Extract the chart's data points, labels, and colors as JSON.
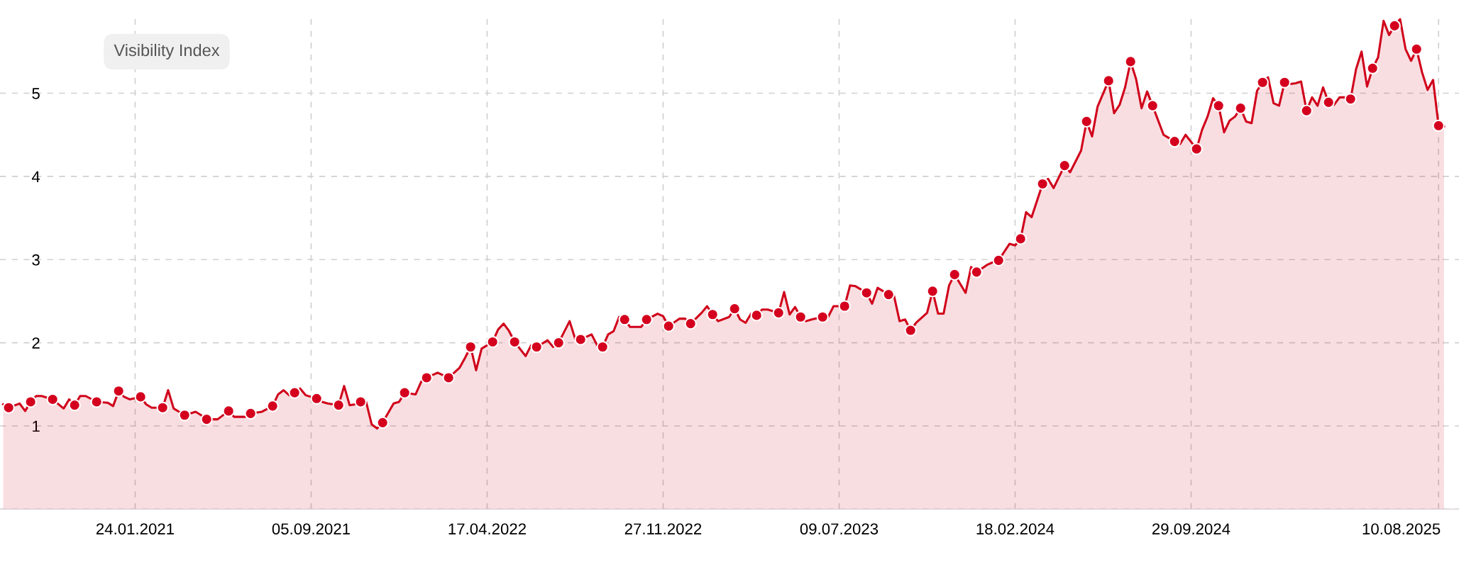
{
  "chart_data": {
    "type": "area",
    "title": "Visibility Index",
    "xlim": [
      "2020-08-05",
      "2025-09-05"
    ],
    "ylim": [
      0,
      5.95
    ],
    "yticks": [
      {
        "value": 0,
        "label": null
      },
      1,
      2,
      3,
      4,
      5
    ],
    "xticks": [
      {
        "value": "2021-01-24",
        "label": "24.01.2021"
      },
      {
        "value": "2021-09-05",
        "label": "05.09.2021"
      },
      {
        "value": "2022-04-17",
        "label": "17.04.2022"
      },
      {
        "value": "2022-11-27",
        "label": "27.11.2022"
      },
      {
        "value": "2023-07-09",
        "label": "09.07.2023"
      },
      {
        "value": "2024-02-18",
        "label": "18.02.2024"
      },
      {
        "value": "2024-09-29",
        "label": "29.09.2024"
      },
      {
        "value": "2025-08-10",
        "label": "10.08.2025"
      }
    ],
    "grid": true,
    "line_style": "dashed",
    "series": [
      {
        "color": "#d0021b",
        "marker": "none",
        "x": [
          "2020-08-09",
          "2020-08-16",
          "2020-08-30",
          "2020-09-06",
          "2020-09-13",
          "2020-09-20",
          "2020-09-27",
          "2020-10-11",
          "2020-10-25",
          "2020-11-01",
          "2020-11-08",
          "2020-11-15",
          "2020-11-22",
          "2020-12-06",
          "2020-12-20",
          "2020-12-27",
          "2021-01-03",
          "2021-01-10",
          "2021-01-17",
          "2021-01-31",
          "2021-02-07",
          "2021-02-14",
          "2021-02-28",
          "2021-03-07",
          "2021-03-14",
          "2021-03-21",
          "2021-03-28",
          "2021-04-11",
          "2021-04-18",
          "2021-04-25",
          "2021-05-09",
          "2021-05-23",
          "2021-05-30",
          "2021-06-13",
          "2021-06-20",
          "2021-07-04",
          "2021-07-18",
          "2021-07-25",
          "2021-08-01",
          "2021-08-08",
          "2021-08-15",
          "2021-08-22",
          "2021-08-29",
          "2021-09-12",
          "2021-09-19",
          "2021-09-26",
          "2021-10-10",
          "2021-10-17",
          "2021-10-24",
          "2021-10-31",
          "2021-11-07",
          "2021-11-14",
          "2021-11-21",
          "2021-11-28",
          "2021-12-05",
          "2021-12-19",
          "2021-12-26",
          "2022-01-02",
          "2022-01-16",
          "2022-01-23",
          "2022-01-30",
          "2022-02-13",
          "2022-02-20",
          "2022-02-27",
          "2022-03-13",
          "2022-03-20",
          "2022-03-27",
          "2022-04-03",
          "2022-04-10",
          "2022-04-24",
          "2022-05-01",
          "2022-05-08",
          "2022-05-15",
          "2022-05-22",
          "2022-06-05",
          "2022-06-12",
          "2022-06-19",
          "2022-07-03",
          "2022-07-10",
          "2022-07-17",
          "2022-07-31",
          "2022-08-07",
          "2022-08-14",
          "2022-08-28",
          "2022-09-04",
          "2022-09-11",
          "2022-09-18",
          "2022-09-25",
          "2022-10-02",
          "2022-10-09",
          "2022-10-16",
          "2022-10-30",
          "2022-11-06",
          "2022-11-20",
          "2022-11-27",
          "2022-12-04",
          "2022-12-18",
          "2022-12-25",
          "2023-01-01",
          "2023-01-15",
          "2023-01-22",
          "2023-01-29",
          "2023-02-05",
          "2023-02-19",
          "2023-02-26",
          "2023-03-05",
          "2023-03-12",
          "2023-03-19",
          "2023-03-26",
          "2023-04-02",
          "2023-04-09",
          "2023-04-23",
          "2023-04-30",
          "2023-05-07",
          "2023-05-14",
          "2023-05-21",
          "2023-05-28",
          "2023-06-04",
          "2023-06-18",
          "2023-06-25",
          "2023-07-02",
          "2023-07-16",
          "2023-07-23",
          "2023-07-30",
          "2023-08-13",
          "2023-08-20",
          "2023-08-27",
          "2023-09-10",
          "2023-09-17",
          "2023-09-24",
          "2023-10-01",
          "2023-10-08",
          "2023-10-15",
          "2023-10-29",
          "2023-11-05",
          "2023-11-12",
          "2023-11-19",
          "2023-11-26",
          "2023-12-03",
          "2023-12-17",
          "2023-12-24",
          "2023-12-31",
          "2024-01-14",
          "2024-01-21",
          "2024-01-28",
          "2024-02-11",
          "2024-02-18",
          "2024-02-25",
          "2024-03-03",
          "2024-03-10",
          "2024-03-24",
          "2024-03-31",
          "2024-04-07",
          "2024-04-21",
          "2024-04-28",
          "2024-05-12",
          "2024-05-19",
          "2024-05-26",
          "2024-06-02",
          "2024-06-16",
          "2024-06-23",
          "2024-06-30",
          "2024-07-07",
          "2024-07-14",
          "2024-07-21",
          "2024-07-28",
          "2024-08-04",
          "2024-08-11",
          "2024-08-25",
          "2024-09-01",
          "2024-09-08",
          "2024-09-15",
          "2024-09-22",
          "2024-10-06",
          "2024-10-13",
          "2024-10-20",
          "2024-10-27",
          "2024-11-03",
          "2024-11-10",
          "2024-11-17",
          "2024-11-24",
          "2024-12-01",
          "2024-12-08",
          "2024-12-15",
          "2024-12-22",
          "2024-12-29",
          "2025-01-05",
          "2025-01-12",
          "2025-01-19",
          "2025-01-26",
          "2025-02-02",
          "2025-02-09",
          "2025-02-16",
          "2025-02-23",
          "2025-03-02",
          "2025-03-09",
          "2025-03-16",
          "2025-03-23",
          "2025-03-30",
          "2025-04-06",
          "2025-04-13",
          "2025-04-20",
          "2025-04-27",
          "2025-05-04",
          "2025-05-11",
          "2025-05-18",
          "2025-05-25",
          "2025-06-01",
          "2025-06-08",
          "2025-06-15",
          "2025-06-22",
          "2025-06-29",
          "2025-07-06",
          "2025-07-13",
          "2025-07-20",
          "2025-07-27",
          "2025-08-03",
          "2025-08-10",
          "2025-08-17"
        ],
        "values": [
          1.26,
          1.22,
          1.27,
          1.18,
          1.29,
          1.36,
          1.36,
          1.32,
          1.21,
          1.32,
          1.25,
          1.36,
          1.36,
          1.29,
          1.28,
          1.24,
          1.42,
          1.35,
          1.32,
          1.35,
          1.26,
          1.22,
          1.22,
          1.43,
          1.21,
          1.17,
          1.13,
          1.17,
          1.13,
          1.08,
          1.08,
          1.18,
          1.11,
          1.11,
          1.15,
          1.17,
          1.24,
          1.38,
          1.43,
          1.37,
          1.4,
          1.45,
          1.37,
          1.33,
          1.29,
          1.27,
          1.25,
          1.48,
          1.25,
          1.26,
          1.29,
          1.29,
          1.02,
          0.97,
          1.04,
          1.27,
          1.29,
          1.4,
          1.38,
          1.53,
          1.58,
          1.64,
          1.61,
          1.58,
          1.7,
          1.82,
          1.95,
          1.67,
          1.93,
          2.01,
          2.16,
          2.23,
          2.14,
          2.01,
          1.84,
          1.97,
          1.95,
          2.03,
          1.95,
          2.0,
          2.26,
          2.05,
          2.04,
          2.1,
          1.97,
          1.95,
          2.1,
          2.14,
          2.31,
          2.28,
          2.19,
          2.19,
          2.28,
          2.35,
          2.32,
          2.2,
          2.29,
          2.29,
          2.23,
          2.36,
          2.44,
          2.34,
          2.26,
          2.31,
          2.41,
          2.28,
          2.24,
          2.35,
          2.33,
          2.4,
          2.4,
          2.36,
          2.61,
          2.34,
          2.43,
          2.31,
          2.26,
          2.28,
          2.31,
          2.31,
          2.44,
          2.44,
          2.69,
          2.68,
          2.6,
          2.47,
          2.66,
          2.58,
          2.56,
          2.26,
          2.28,
          2.15,
          2.24,
          2.36,
          2.62,
          2.35,
          2.35,
          2.69,
          2.82,
          2.6,
          2.91,
          2.85,
          2.94,
          2.97,
          2.99,
          3.19,
          3.17,
          3.25,
          3.57,
          3.51,
          3.91,
          3.97,
          3.86,
          4.13,
          4.05,
          4.31,
          4.66,
          4.48,
          4.84,
          5.15,
          4.76,
          4.86,
          5.07,
          5.38,
          5.17,
          4.82,
          5.02,
          4.85,
          4.5,
          4.46,
          4.42,
          4.39,
          4.5,
          4.33,
          4.56,
          4.72,
          4.94,
          4.85,
          4.53,
          4.67,
          4.72,
          4.82,
          4.66,
          4.64,
          5.03,
          5.13,
          5.19,
          4.88,
          4.85,
          5.13,
          5.11,
          5.12,
          5.14,
          4.79,
          4.95,
          4.85,
          5.07,
          4.89,
          4.86,
          4.95,
          4.95,
          4.93,
          5.29,
          5.5,
          5.08,
          5.3,
          5.43,
          5.87,
          5.7,
          5.81,
          5.89,
          5.53,
          5.39,
          5.53,
          5.25,
          5.04,
          5.16,
          4.61,
          4.6
        ]
      },
      {
        "type": "scatter",
        "color": "#d4001e",
        "marker": "circle",
        "x": [
          "2020-08-16",
          "2020-09-13",
          "2020-10-11",
          "2020-11-08",
          "2020-12-06",
          "2021-01-03",
          "2021-01-31",
          "2021-02-28",
          "2021-03-28",
          "2021-04-25",
          "2021-05-23",
          "2021-06-20",
          "2021-07-18",
          "2021-08-15",
          "2021-09-12",
          "2021-10-10",
          "2021-11-07",
          "2021-12-05",
          "2022-01-02",
          "2022-01-30",
          "2022-02-27",
          "2022-03-27",
          "2022-04-24",
          "2022-05-22",
          "2022-06-19",
          "2022-07-17",
          "2022-08-14",
          "2022-09-11",
          "2022-10-09",
          "2022-11-06",
          "2022-12-04",
          "2023-01-01",
          "2023-01-29",
          "2023-02-26",
          "2023-03-26",
          "2023-04-23",
          "2023-05-21",
          "2023-06-18",
          "2023-07-16",
          "2023-08-13",
          "2023-09-10",
          "2023-10-08",
          "2023-11-05",
          "2023-12-03",
          "2023-12-31",
          "2024-01-28",
          "2024-02-25",
          "2024-03-24",
          "2024-04-21",
          "2024-05-19",
          "2024-06-16",
          "2024-07-14",
          "2024-08-11",
          "2024-09-08",
          "2024-10-06",
          "2024-11-03",
          "2024-12-01",
          "2024-12-29",
          "2025-01-26",
          "2025-02-23",
          "2025-03-23",
          "2025-04-20",
          "2025-05-18",
          "2025-06-15",
          "2025-07-13",
          "2025-08-10"
        ],
        "values": [
          1.22,
          1.29,
          1.32,
          1.25,
          1.29,
          1.42,
          1.35,
          1.22,
          1.13,
          1.08,
          1.18,
          1.15,
          1.24,
          1.4,
          1.33,
          1.25,
          1.29,
          1.04,
          1.4,
          1.58,
          1.58,
          1.95,
          2.01,
          2.01,
          1.95,
          2.0,
          2.04,
          1.95,
          2.28,
          2.28,
          2.2,
          2.23,
          2.34,
          2.41,
          2.33,
          2.36,
          2.31,
          2.31,
          2.44,
          2.6,
          2.58,
          2.15,
          2.62,
          2.82,
          2.85,
          2.99,
          3.25,
          3.91,
          4.13,
          4.66,
          5.15,
          5.38,
          4.85,
          4.42,
          4.33,
          4.85,
          4.82,
          5.13,
          5.13,
          4.79,
          4.89,
          4.93,
          5.3,
          5.81,
          5.53,
          4.61
        ]
      }
    ]
  }
}
